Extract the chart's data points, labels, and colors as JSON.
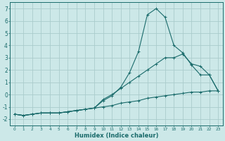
{
  "xlabel": "Humidex (Indice chaleur)",
  "background_color": "#cce8e8",
  "grid_color": "#aacccc",
  "line_color": "#1a6b6b",
  "x_values": [
    0,
    1,
    2,
    3,
    4,
    5,
    6,
    7,
    8,
    9,
    10,
    11,
    12,
    13,
    14,
    15,
    16,
    17,
    18,
    19,
    20,
    21,
    22,
    23
  ],
  "series1": [
    -1.6,
    -1.7,
    -1.6,
    -1.5,
    -1.5,
    -1.5,
    -1.4,
    -1.3,
    -1.2,
    -1.1,
    -0.5,
    -0.1,
    0.6,
    1.8,
    3.5,
    6.5,
    7.0,
    6.3,
    4.0,
    3.4,
    2.4,
    1.6,
    1.6,
    0.3
  ],
  "series2": [
    -1.6,
    -1.7,
    -1.6,
    -1.5,
    -1.5,
    -1.5,
    -1.4,
    -1.3,
    -1.2,
    -1.1,
    -0.4,
    0.0,
    0.5,
    1.0,
    1.5,
    2.0,
    2.5,
    3.0,
    3.0,
    3.3,
    2.5,
    2.3,
    1.6,
    0.3
  ],
  "series3": [
    -1.6,
    -1.7,
    -1.6,
    -1.5,
    -1.5,
    -1.5,
    -1.4,
    -1.3,
    -1.2,
    -1.1,
    -1.0,
    -0.9,
    -0.7,
    -0.6,
    -0.5,
    -0.3,
    -0.2,
    -0.1,
    0.0,
    0.1,
    0.2,
    0.2,
    0.3,
    0.3
  ],
  "ylim": [
    -2.5,
    7.5
  ],
  "xlim": [
    -0.5,
    23.5
  ],
  "yticks": [
    -2,
    -1,
    0,
    1,
    2,
    3,
    4,
    5,
    6,
    7
  ],
  "xticks": [
    0,
    1,
    2,
    3,
    4,
    5,
    6,
    7,
    8,
    9,
    10,
    11,
    12,
    13,
    14,
    15,
    16,
    17,
    18,
    19,
    20,
    21,
    22,
    23
  ]
}
